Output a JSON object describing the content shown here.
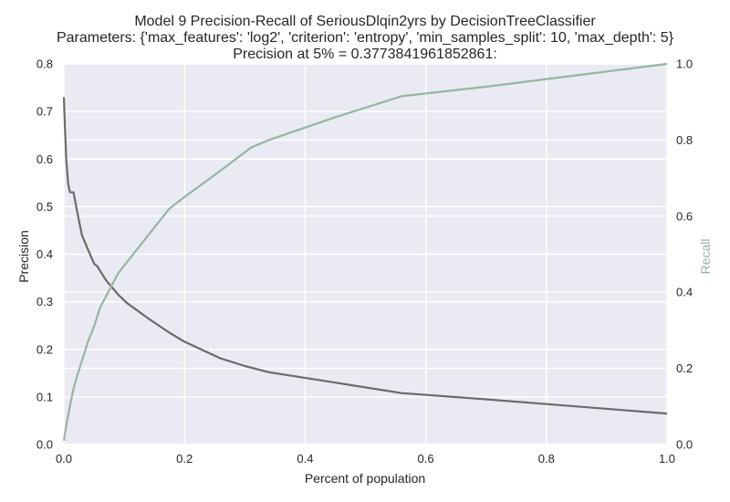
{
  "titles": {
    "line1": "Model 9 Precision-Recall of SeriousDlqin2yrs by DecisionTreeClassifier",
    "line2": "Parameters: {'max_features': 'log2', 'criterion': 'entropy', 'min_samples_split': 10, 'max_depth': 5}",
    "line3": "Precision at 5% = 0.3773841961852861:"
  },
  "colors": {
    "background": "#eaeaf2",
    "grid": "#ffffff",
    "precision": "#6b6b6b",
    "recall": "#95b5a3",
    "text": "#262626"
  },
  "chart_data": {
    "type": "line",
    "title": "Model 9 Precision-Recall of SeriousDlqin2yrs by DecisionTreeClassifier",
    "xlabel": "Percent of population",
    "ylabel": "Precision",
    "y2label": "Recall",
    "xlim": [
      0.0,
      1.0
    ],
    "ylim": [
      0.0,
      0.8
    ],
    "y2lim": [
      0.0,
      1.0
    ],
    "grid": true,
    "x_ticks": [
      "0.0",
      "0.2",
      "0.4",
      "0.6",
      "0.8",
      "1.0"
    ],
    "y_ticks": [
      "0.0",
      "0.1",
      "0.2",
      "0.3",
      "0.4",
      "0.5",
      "0.6",
      "0.7",
      "0.8"
    ],
    "y2_ticks": [
      "0.0",
      "0.2",
      "0.4",
      "0.6",
      "0.8",
      "1.0"
    ],
    "series": [
      {
        "axis": "left",
        "color": "#6b6b6b",
        "x": [
          0.0,
          0.002,
          0.004,
          0.007,
          0.01,
          0.016,
          0.022,
          0.03,
          0.04,
          0.05,
          0.055,
          0.06,
          0.07,
          0.08,
          0.09,
          0.105,
          0.14,
          0.175,
          0.2,
          0.26,
          0.3,
          0.34,
          0.45,
          0.56,
          0.7,
          0.85,
          1.0
        ],
        "y": [
          0.73,
          0.66,
          0.6,
          0.55,
          0.53,
          0.53,
          0.49,
          0.44,
          0.41,
          0.38,
          0.375,
          0.365,
          0.345,
          0.33,
          0.315,
          0.297,
          0.265,
          0.235,
          0.216,
          0.181,
          0.165,
          0.152,
          0.13,
          0.108,
          0.095,
          0.08,
          0.065
        ]
      },
      {
        "axis": "right",
        "color": "#95b5a3",
        "x": [
          0.0,
          0.005,
          0.01,
          0.015,
          0.02,
          0.03,
          0.04,
          0.05,
          0.06,
          0.07,
          0.08,
          0.09,
          0.1,
          0.12,
          0.15,
          0.175,
          0.2,
          0.26,
          0.31,
          0.34,
          0.45,
          0.56,
          0.7,
          0.85,
          1.0
        ],
        "y": [
          0.01,
          0.06,
          0.1,
          0.14,
          0.17,
          0.22,
          0.27,
          0.31,
          0.36,
          0.39,
          0.42,
          0.45,
          0.47,
          0.51,
          0.57,
          0.62,
          0.65,
          0.72,
          0.78,
          0.8,
          0.86,
          0.915,
          0.94,
          0.97,
          1.0
        ]
      }
    ]
  }
}
